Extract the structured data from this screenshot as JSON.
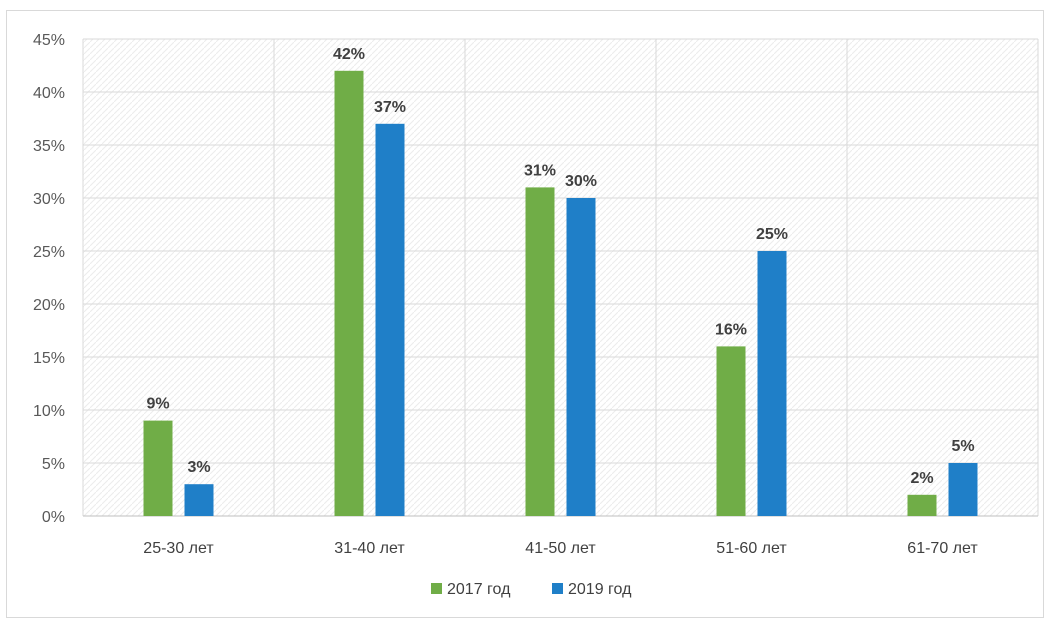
{
  "chart_data": {
    "type": "bar",
    "title": "",
    "xlabel": "",
    "ylabel": "",
    "categories": [
      "25-30 лет",
      "31-40 лет",
      "41-50 лет",
      "51-60 лет",
      "61-70 лет"
    ],
    "series": [
      {
        "name": "2017 год",
        "color": "#70ad47",
        "values": [
          9,
          42,
          31,
          16,
          2
        ],
        "labels": [
          "9%",
          "42%",
          "31%",
          "16%",
          "2%"
        ]
      },
      {
        "name": "2019 год",
        "color": "#1f7fc8",
        "values": [
          3,
          37,
          30,
          25,
          5
        ],
        "labels": [
          "3%",
          "37%",
          "30%",
          "25%",
          "5%"
        ]
      }
    ],
    "ylim": [
      0,
      45
    ],
    "y_ticks": [
      0,
      5,
      10,
      15,
      20,
      25,
      30,
      35,
      40,
      45
    ],
    "y_tick_labels": [
      "0%",
      "5%",
      "10%",
      "15%",
      "20%",
      "25%",
      "30%",
      "35%",
      "40%",
      "45%"
    ],
    "grid": true,
    "legend_position": "bottom"
  }
}
